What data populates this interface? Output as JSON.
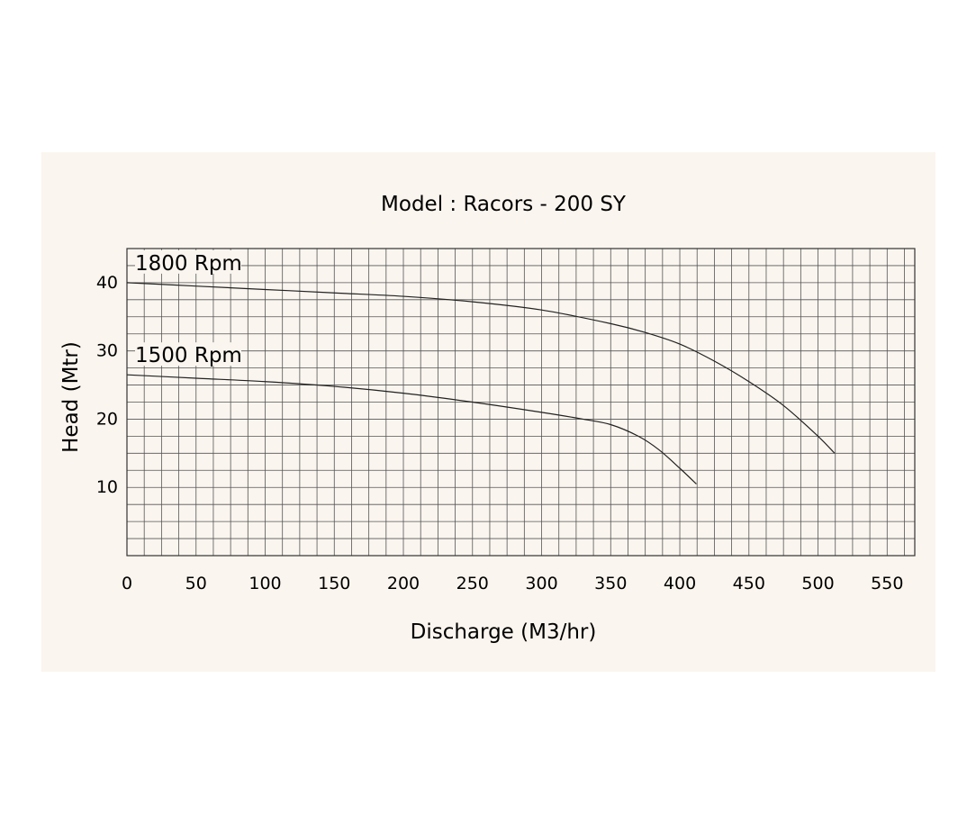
{
  "chart_data": {
    "type": "line",
    "title": "Model : Racors - 200 SY",
    "xlabel": "Discharge (M3/hr)",
    "ylabel": "Head (Mtr)",
    "x_ticks": [
      {
        "label": "0",
        "value": 0
      },
      {
        "label": "50",
        "value": 50
      },
      {
        "label": "100",
        "value": 100
      },
      {
        "label": "150",
        "value": 150
      },
      {
        "label": "200",
        "value": 200
      },
      {
        "label": "250",
        "value": 250
      },
      {
        "label": "300",
        "value": 300
      },
      {
        "label": "350",
        "value": 350
      },
      {
        "label": "400",
        "value": 400
      },
      {
        "label": "450",
        "value": 450
      },
      {
        "label": "500",
        "value": 500
      },
      {
        "label": "550",
        "value": 550
      }
    ],
    "y_ticks": [
      {
        "label": "10",
        "value": 10
      },
      {
        "label": "20",
        "value": 20
      },
      {
        "label": "30",
        "value": 30
      },
      {
        "label": "40",
        "value": 40
      }
    ],
    "xlim": [
      0,
      570
    ],
    "ylim": [
      0,
      45
    ],
    "grid": true,
    "series": [
      {
        "name": "1800 Rpm",
        "color": "#222222",
        "x": [
          0,
          50,
          100,
          150,
          200,
          250,
          300,
          350,
          375,
          400,
          425,
          450,
          475,
          500,
          512
        ],
        "y": [
          40,
          39.5,
          39,
          38.5,
          38,
          37.2,
          36,
          34,
          32.7,
          31,
          28.5,
          25.5,
          22,
          17.5,
          15
        ]
      },
      {
        "name": "1500 Rpm",
        "color": "#222222",
        "x": [
          0,
          50,
          100,
          150,
          200,
          250,
          300,
          330,
          350,
          370,
          385,
          400,
          412
        ],
        "y": [
          26.5,
          26,
          25.5,
          24.8,
          23.8,
          22.5,
          21,
          20,
          19.2,
          17.5,
          15.5,
          12.8,
          10.5
        ]
      }
    ]
  }
}
